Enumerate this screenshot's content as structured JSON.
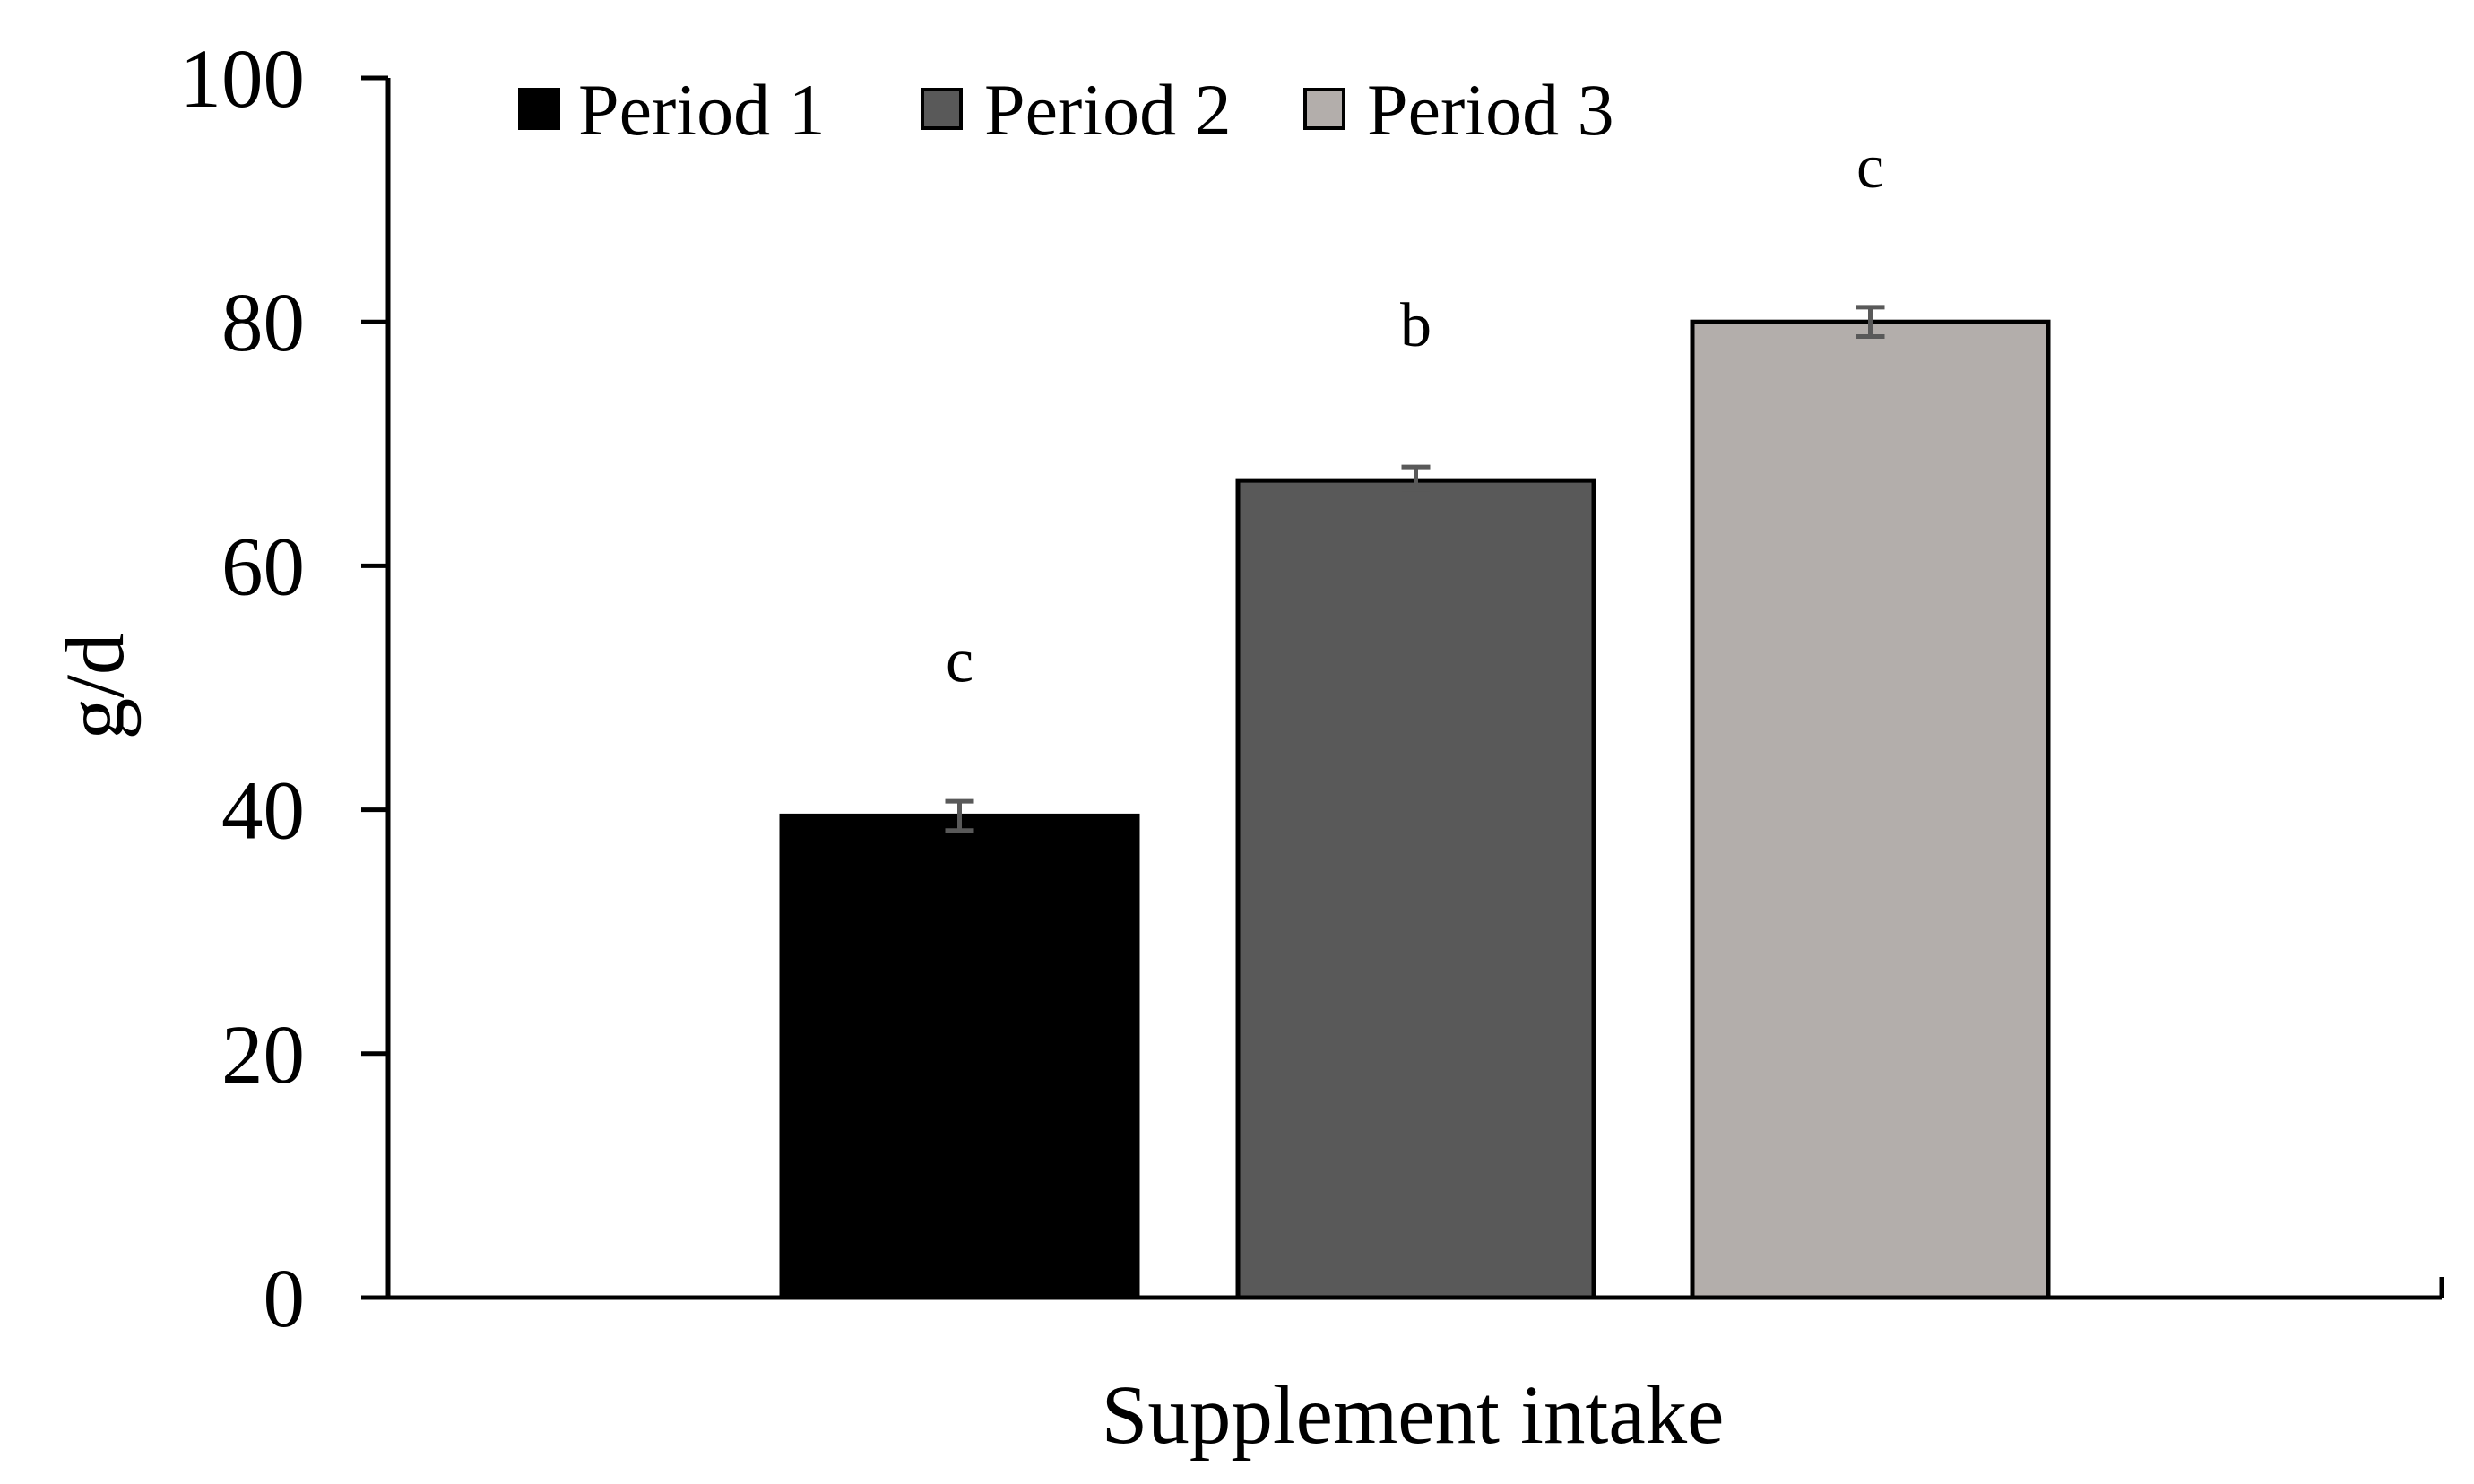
{
  "chart_data": {
    "type": "bar",
    "title": "",
    "xlabel": "Supplement intake",
    "ylabel": "g/d",
    "ylim": [
      0,
      100
    ],
    "yticks": [
      0,
      20,
      40,
      60,
      80,
      100
    ],
    "grid": false,
    "legend_position": "top-left",
    "series": [
      {
        "name": "Period 1",
        "value": 39.5,
        "error": 1.2,
        "sig_label": "c",
        "color": "#000000"
      },
      {
        "name": "Period 2",
        "value": 67.0,
        "error": 1.1,
        "sig_label": "b",
        "color": "#595959"
      },
      {
        "name": "Period 3",
        "value": 80.0,
        "error": 1.2,
        "sig_label": "c",
        "color": "#b3aeab"
      }
    ],
    "error_bar_color": "#595959"
  }
}
